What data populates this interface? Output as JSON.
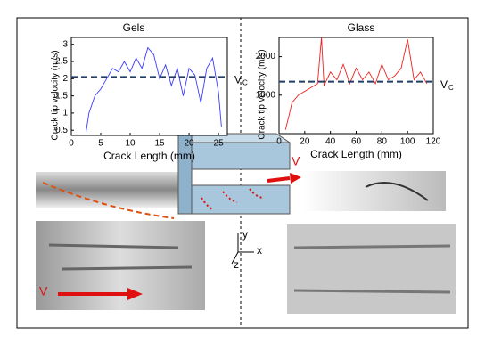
{
  "chart_data": [
    {
      "type": "line",
      "title": "Gels",
      "x_label": "Crack Length (mm)",
      "y_label": "Crack tip velocity (m/s)",
      "x": [
        2.5,
        3,
        4,
        5,
        6,
        7,
        8,
        9,
        10,
        11,
        12,
        13,
        14,
        15,
        16,
        17,
        18,
        19,
        20,
        21,
        22,
        23,
        24,
        25,
        25.5
      ],
      "series": [
        {
          "name": "Gels",
          "color": "#3a3aff",
          "values": [
            0.45,
            1.0,
            1.5,
            1.7,
            2.0,
            2.3,
            2.2,
            2.5,
            2.2,
            2.6,
            2.3,
            2.9,
            2.7,
            2.0,
            2.4,
            1.8,
            2.3,
            1.5,
            2.3,
            2.1,
            1.3,
            2.3,
            2.6,
            1.6,
            0.6
          ]
        }
      ],
      "xlim": [
        0,
        26.5
      ],
      "ylim": [
        0.35,
        3.2
      ],
      "xticks": [
        0,
        5,
        10,
        15,
        20,
        25
      ],
      "yticks": [
        0.5,
        1,
        1.5,
        2,
        2.5,
        3
      ],
      "threshold": {
        "value": 2.05,
        "label": "V",
        "label_sub": "C",
        "color": "#1f3f66"
      }
    },
    {
      "type": "line",
      "title": "Glass",
      "x_label": "Crack Length (mm)",
      "y_label": "Crack tip velocity (m/s)",
      "x": [
        5,
        8,
        10,
        15,
        20,
        25,
        30,
        33,
        35,
        40,
        45,
        50,
        55,
        60,
        65,
        70,
        75,
        80,
        85,
        90,
        95,
        100,
        105,
        110,
        115
      ],
      "series": [
        {
          "name": "Glass",
          "color": "#ee2020",
          "values": [
            100,
            500,
            800,
            1000,
            1100,
            1200,
            1300,
            2500,
            1250,
            1600,
            1400,
            1800,
            1300,
            1700,
            1400,
            1600,
            1300,
            1800,
            1400,
            1500,
            1700,
            2450,
            1400,
            1600,
            1300
          ]
        }
      ],
      "xlim": [
        0,
        120
      ],
      "ylim": [
        0,
        2500
      ],
      "xticks": [
        0,
        20,
        40,
        60,
        80,
        100,
        120
      ],
      "yticks": [
        1000,
        2000
      ],
      "threshold": {
        "value": 1350,
        "label": "V",
        "label_sub": "C",
        "color": "#1f3f66"
      }
    }
  ],
  "figure_labels": {
    "v_top": "V",
    "v_bottom": "V",
    "axis_y": "y",
    "axis_x": "x",
    "axis_z": "z"
  }
}
